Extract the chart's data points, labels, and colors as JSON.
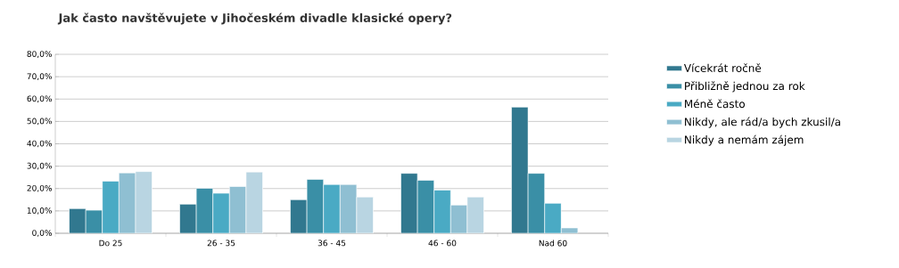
{
  "chart_data": {
    "type": "bar",
    "title": "Jak často navštěvujete v Jihočeském divadle klasické opery?",
    "categories": [
      "Do 25",
      "26 - 35",
      "36 - 45",
      "46 - 60",
      "Nad 60"
    ],
    "series": [
      {
        "name": "Vícekrát ročně",
        "color": "#31788f",
        "values": [
          11.0,
          13.0,
          15.0,
          26.8,
          56.4
        ]
      },
      {
        "name": "Přibližně jednou za rok",
        "color": "#3a8fa6",
        "values": [
          10.3,
          20.1,
          24.1,
          23.7,
          26.8
        ]
      },
      {
        "name": "Méně často",
        "color": "#4aaac4",
        "values": [
          23.3,
          17.9,
          21.8,
          19.3,
          13.4
        ]
      },
      {
        "name": "Nikdy, ale rád/a bych zkusil/a",
        "color": "#8fbfd2",
        "values": [
          27.0,
          20.9,
          21.8,
          12.6,
          2.4
        ]
      },
      {
        "name": "Nikdy a nemám zájem",
        "color": "#b9d5e2",
        "values": [
          27.6,
          27.4,
          16.2,
          16.2,
          null
        ]
      }
    ],
    "ylim": [
      0,
      80
    ],
    "yticks": [
      {
        "value": 0,
        "label": "0,0%"
      },
      {
        "value": 10,
        "label": "10,0%"
      },
      {
        "value": 20,
        "label": "20,0%"
      },
      {
        "value": 30,
        "label": "30,0%"
      },
      {
        "value": 40,
        "label": "40,0%"
      },
      {
        "value": 50,
        "label": "50,0%"
      },
      {
        "value": 60,
        "label": "60,0%"
      },
      {
        "value": 70,
        "label": "70,0%"
      },
      {
        "value": 80,
        "label": "80,0%"
      }
    ],
    "grid": "y",
    "legend": "right"
  }
}
